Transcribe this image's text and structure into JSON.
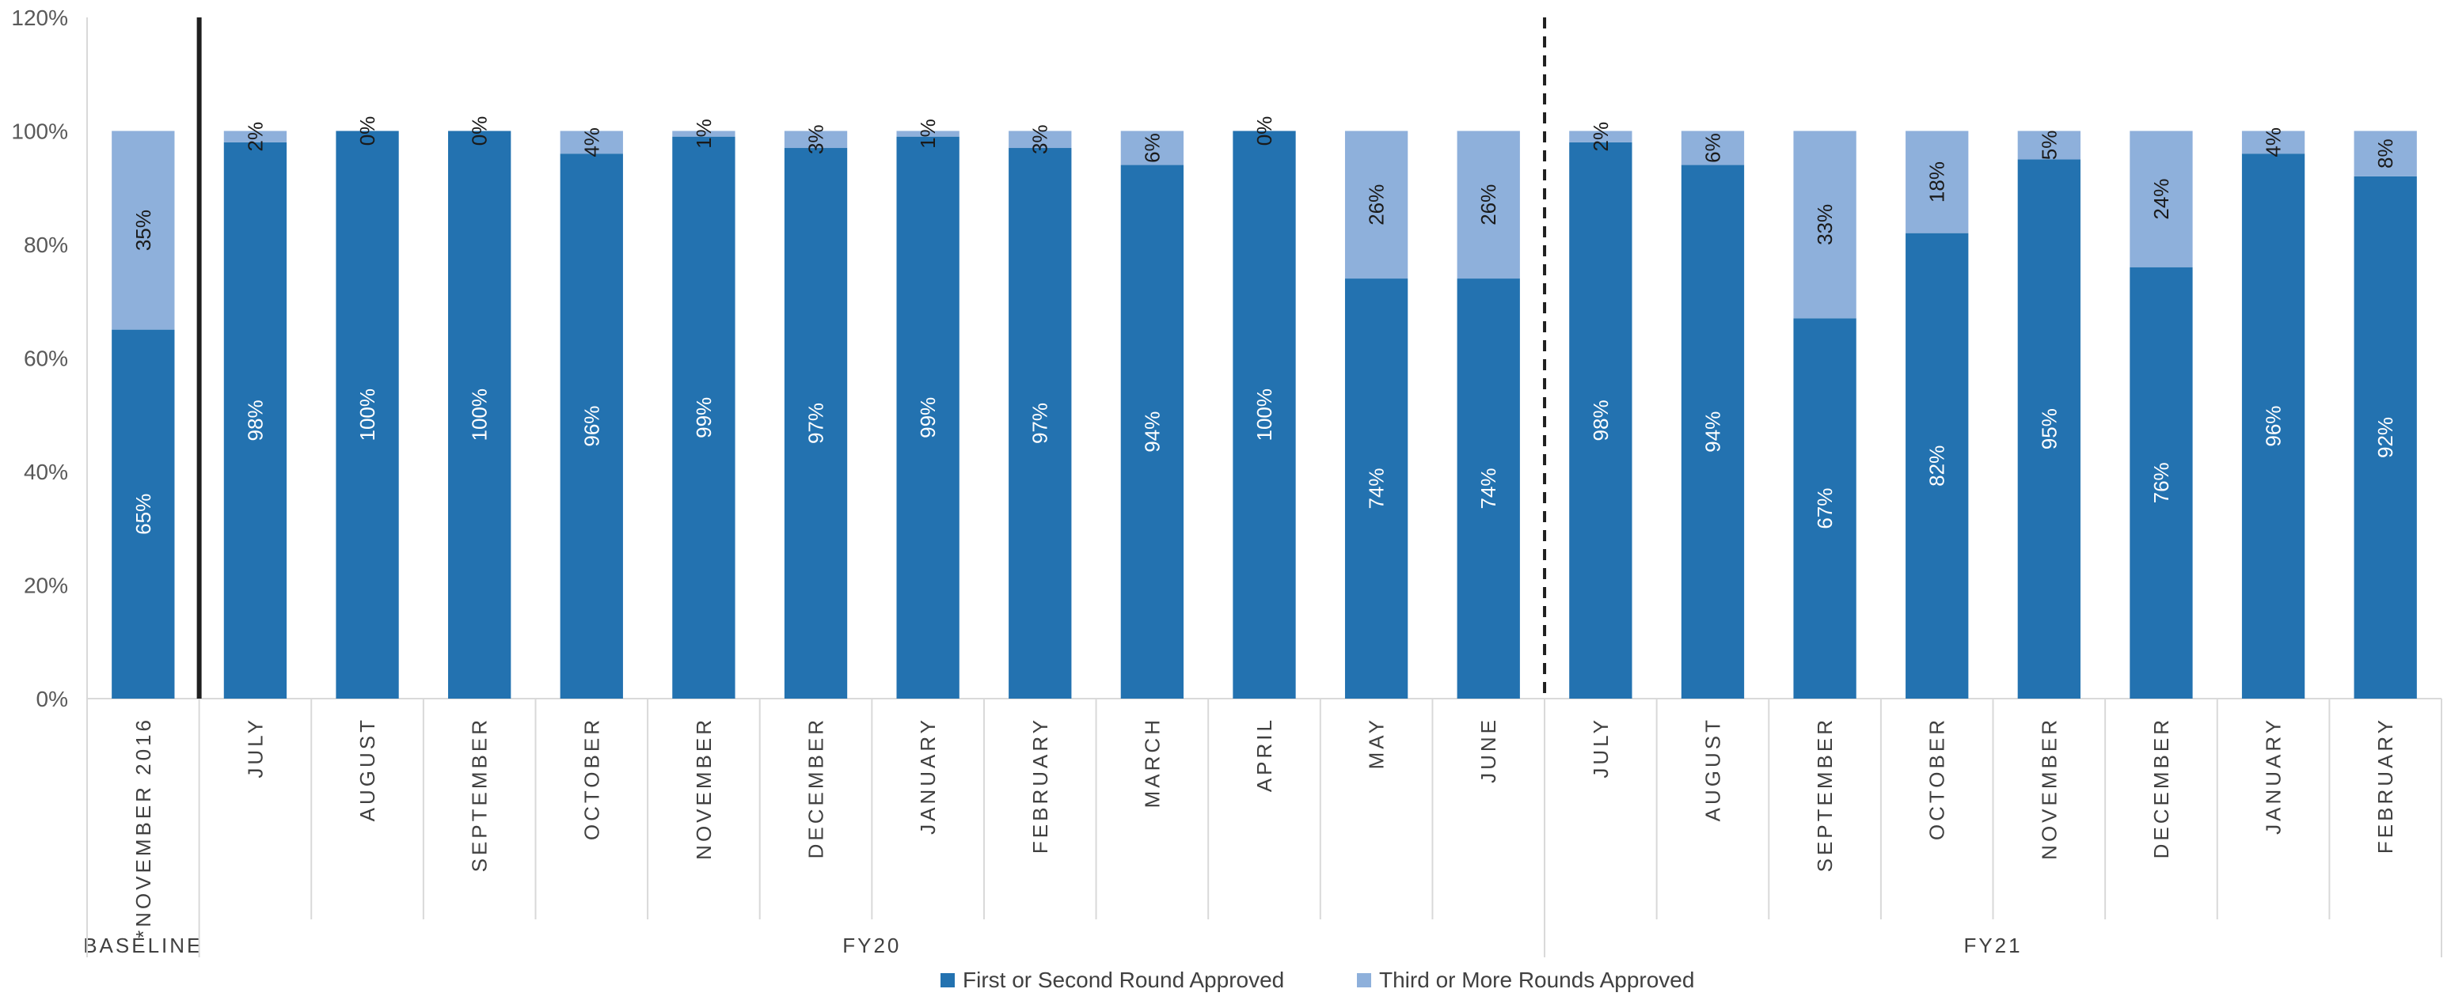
{
  "chart_data": {
    "type": "bar",
    "stacked": true,
    "ylim": [
      0,
      120
    ],
    "yticks": [
      0,
      20,
      40,
      60,
      80,
      100,
      120
    ],
    "ytick_labels": [
      "0%",
      "20%",
      "40%",
      "60%",
      "80%",
      "100%",
      "120%"
    ],
    "categories": [
      "*NOVEMBER 2016",
      "JULY",
      "AUGUST",
      "SEPTEMBER",
      "OCTOBER",
      "NOVEMBER",
      "DECEMBER",
      "JANUARY",
      "FEBRUARY",
      "MARCH",
      "APRIL",
      "MAY",
      "JUNE",
      "JULY",
      "AUGUST",
      "SEPTEMBER",
      "OCTOBER",
      "NOVEMBER",
      "DECEMBER",
      "JANUARY",
      "FEBRUARY"
    ],
    "groups": [
      {
        "label": "BASELINE",
        "start": 0,
        "end": 0
      },
      {
        "label": "FY20",
        "start": 1,
        "end": 12
      },
      {
        "label": "FY21",
        "start": 13,
        "end": 20
      }
    ],
    "series": [
      {
        "name": "First or Second Round Approved",
        "color": "#2372b0",
        "label_color": "#ffffff",
        "values": [
          65,
          98,
          100,
          100,
          96,
          99,
          97,
          99,
          97,
          94,
          100,
          74,
          74,
          98,
          94,
          67,
          82,
          95,
          76,
          96,
          92
        ]
      },
      {
        "name": "Third or More Rounds Approved",
        "color": "#8eb0db",
        "label_color": "#1a1a1a",
        "values": [
          35,
          2,
          0,
          0,
          4,
          1,
          3,
          1,
          3,
          6,
          0,
          26,
          26,
          2,
          6,
          33,
          18,
          5,
          24,
          4,
          8
        ]
      }
    ],
    "divider_lines": [
      {
        "after_index": 0,
        "style": "solid"
      },
      {
        "after_index": 12,
        "style": "dashed"
      }
    ],
    "legend_position": "bottom",
    "grid": false
  }
}
